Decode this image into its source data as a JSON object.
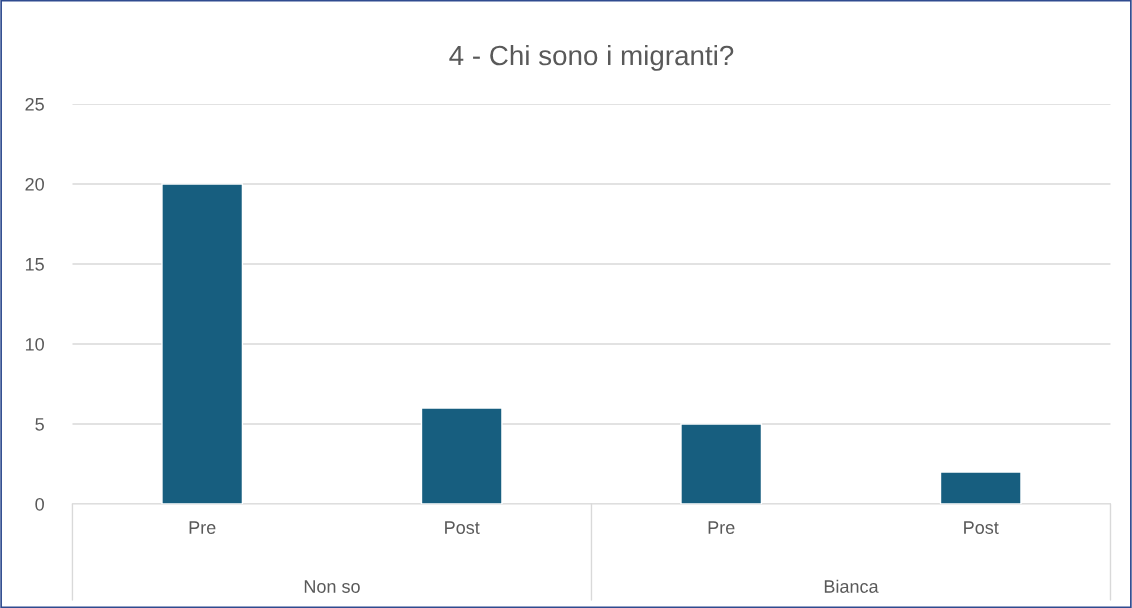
{
  "chart_data": {
    "type": "bar",
    "title": "4 - Chi sono i migranti?",
    "categories": [
      "Pre",
      "Post",
      "Pre",
      "Post"
    ],
    "values": [
      20,
      6,
      5,
      2
    ],
    "color": "#175e7f",
    "ylim": [
      0,
      25
    ],
    "yticks": [
      0,
      5,
      10,
      15,
      20,
      25
    ],
    "grid": "y",
    "annotations": [
      "Non so",
      "Bianca"
    ]
  }
}
